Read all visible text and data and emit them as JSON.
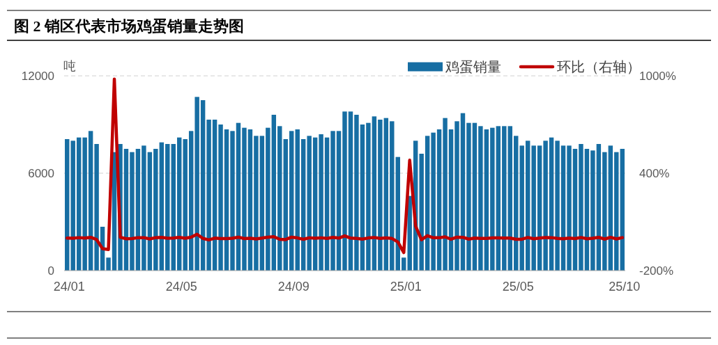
{
  "chart_data": {
    "type": "bar",
    "title": "图 2 销区代表市场鸡蛋销量走势图",
    "ylabel": "吨",
    "categories": [
      "24/01",
      null,
      null,
      null,
      null,
      null,
      null,
      null,
      null,
      null,
      null,
      null,
      null,
      null,
      null,
      null,
      null,
      null,
      null,
      "24/05",
      null,
      null,
      null,
      null,
      null,
      null,
      null,
      null,
      null,
      null,
      null,
      null,
      null,
      null,
      null,
      null,
      null,
      null,
      "24/09",
      null,
      null,
      null,
      null,
      null,
      null,
      null,
      null,
      null,
      null,
      null,
      null,
      null,
      null,
      null,
      null,
      null,
      null,
      "25/01",
      null,
      null,
      null,
      null,
      null,
      null,
      null,
      null,
      null,
      null,
      null,
      null,
      null,
      null,
      null,
      null,
      null,
      null,
      "25/05",
      null,
      null,
      null,
      null,
      null,
      null,
      null,
      null,
      null,
      null,
      null,
      null,
      null,
      null,
      null,
      null,
      null,
      "25/10"
    ],
    "series": [
      {
        "name": "鸡蛋销量",
        "color": "#176ea3",
        "values": [
          8100,
          8000,
          8200,
          8200,
          8600,
          7800,
          2700,
          800,
          7300,
          7800,
          7500,
          7300,
          7500,
          7700,
          7300,
          7500,
          7900,
          7800,
          7800,
          8200,
          8100,
          8600,
          10700,
          10500,
          9300,
          9300,
          9000,
          8700,
          8600,
          9100,
          8800,
          8700,
          8300,
          8300,
          8800,
          9600,
          8900,
          8100,
          8600,
          8700,
          8100,
          8300,
          8200,
          8400,
          8200,
          8600,
          8600,
          9800,
          9800,
          9600,
          9000,
          9100,
          9500,
          9300,
          9400,
          9200,
          7000,
          800,
          4600,
          8000,
          7200,
          8300,
          8500,
          8700,
          9400,
          8700,
          9200,
          9700,
          9100,
          9100,
          8900,
          8700,
          8800,
          8900,
          8900,
          8900,
          8300,
          7700,
          8000,
          7700,
          7700,
          8000,
          8200,
          8000,
          7700,
          7700,
          7500,
          7800,
          7500,
          7400,
          7800,
          7300,
          7700,
          7300,
          7500
        ]
      },
      {
        "name": "环比（右轴）",
        "type": "line",
        "axis": "y2",
        "color": "#c00000",
        "values": [
          0,
          -1,
          3,
          0,
          5,
          -9,
          -65,
          -70,
          980,
          5,
          -4,
          -3,
          3,
          3,
          -5,
          3,
          5,
          -1,
          0,
          5,
          -1,
          6,
          24,
          -2,
          -11,
          0,
          -3,
          -3,
          -1,
          6,
          -3,
          -1,
          -5,
          0,
          6,
          9,
          -7,
          -9,
          6,
          1,
          -7,
          2,
          -1,
          2,
          -2,
          5,
          0,
          14,
          0,
          -2,
          -6,
          1,
          4,
          -2,
          1,
          -2,
          -24,
          -89,
          480,
          74,
          -10,
          15,
          2,
          2,
          8,
          -7,
          6,
          5,
          -6,
          0,
          -2,
          -2,
          1,
          1,
          0,
          0,
          -7,
          -7,
          4,
          -4,
          0,
          4,
          3,
          -2,
          -4,
          0,
          -3,
          4,
          -4,
          -1,
          5,
          -6,
          5,
          -5,
          3
        ]
      }
    ],
    "ylim": [
      0,
      12000
    ],
    "yticks": [
      0,
      6000,
      12000
    ],
    "y2lim": [
      -200,
      1000
    ],
    "y2ticks": [
      {
        "value": -200,
        "label": "-200%"
      },
      {
        "value": 400,
        "label": "400%"
      },
      {
        "value": 1000,
        "label": "1000%"
      }
    ],
    "grid": "y",
    "legend": "top right"
  }
}
